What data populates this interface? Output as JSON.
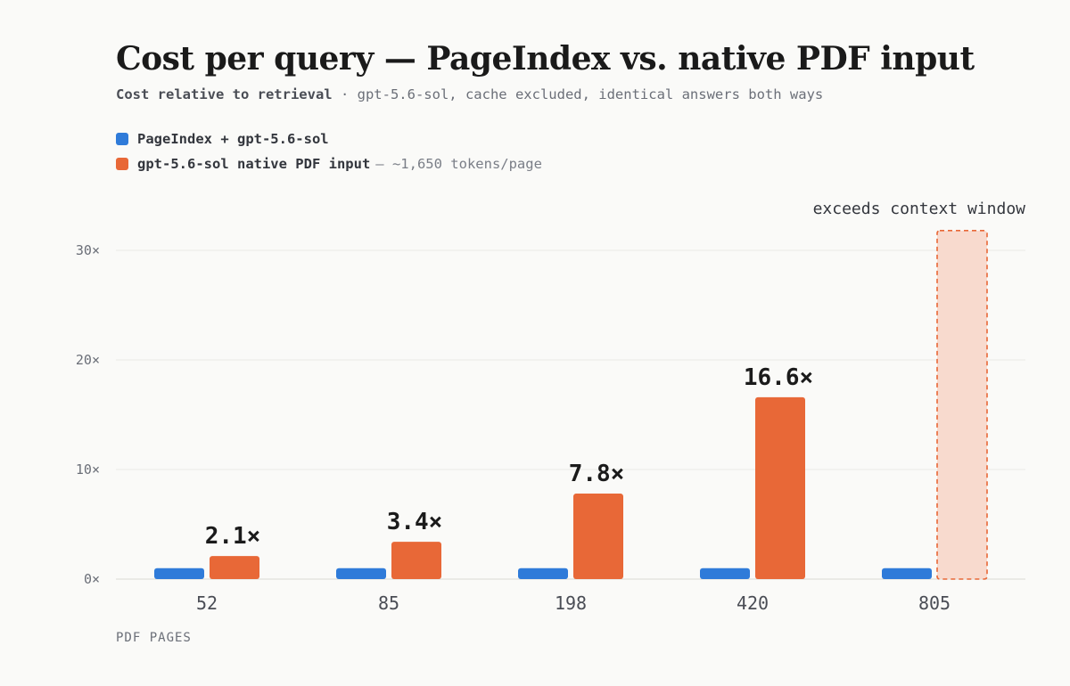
{
  "title": "Cost per query — PageIndex vs. native PDF input",
  "subtitle": {
    "strong": "Cost relative to retrieval",
    "rest": "· gpt-5.6-sol, cache excluded, identical answers both ways"
  },
  "colors": {
    "pageindex": "#2f7bd9",
    "native": "#e86837",
    "native_overflow_fill": "#f8dace",
    "grid": "#e9e9e6",
    "axis_text": "#6b6f78"
  },
  "chart_data": {
    "type": "bar",
    "title": "Cost per query — PageIndex vs. native PDF input",
    "xlabel": "PDF PAGES",
    "ylabel": "",
    "ylim": [
      0,
      30
    ],
    "yticks": [
      0,
      10,
      20,
      30
    ],
    "ytick_labels": [
      "0×",
      "10×",
      "20×",
      "30×"
    ],
    "categories": [
      "52",
      "85",
      "198",
      "420",
      "805"
    ],
    "grid": true,
    "legend_position": "top-left",
    "series": [
      {
        "name": "PageIndex + gpt-5.6-sol",
        "values": [
          1,
          1,
          1,
          1,
          1
        ]
      },
      {
        "name": "gpt-5.6-sol native PDF input",
        "note": "— ~1,650 tokens/page",
        "values": [
          2.1,
          3.4,
          7.8,
          16.6,
          null
        ],
        "data_labels": [
          "2.1×",
          "3.4×",
          "7.8×",
          "16.6×",
          ""
        ]
      }
    ],
    "annotations": [
      {
        "category": "805",
        "text": "exceeds context window",
        "style": "dashed-outline",
        "extends_to": 31.8
      }
    ]
  }
}
